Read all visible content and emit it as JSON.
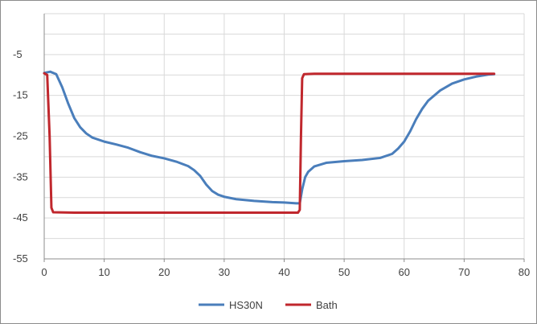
{
  "chart_data": {
    "type": "line",
    "title": "",
    "xlabel": "",
    "ylabel": "",
    "xlim": [
      0,
      80
    ],
    "ylim": [
      -55,
      5
    ],
    "x_ticks": [
      0,
      10,
      20,
      30,
      40,
      50,
      60,
      70,
      80
    ],
    "y_ticks": [
      -5,
      -15,
      -25,
      -35,
      -45,
      -55
    ],
    "grid": "horizontal",
    "legend_position": "bottom",
    "series": [
      {
        "name": "HS30N",
        "color": "#4a7ebb",
        "points": [
          [
            0,
            -9.5
          ],
          [
            1,
            -9.2
          ],
          [
            2,
            -9.8
          ],
          [
            3,
            -13
          ],
          [
            4,
            -17
          ],
          [
            5,
            -20.5
          ],
          [
            6,
            -22.8
          ],
          [
            7,
            -24.3
          ],
          [
            8,
            -25.3
          ],
          [
            10,
            -26.3
          ],
          [
            12,
            -27
          ],
          [
            14,
            -27.8
          ],
          [
            16,
            -28.9
          ],
          [
            18,
            -29.8
          ],
          [
            20,
            -30.4
          ],
          [
            22,
            -31.2
          ],
          [
            24,
            -32.3
          ],
          [
            25,
            -33.3
          ],
          [
            26,
            -34.7
          ],
          [
            27,
            -36.8
          ],
          [
            28,
            -38.4
          ],
          [
            29,
            -39.3
          ],
          [
            30,
            -39.8
          ],
          [
            32,
            -40.4
          ],
          [
            35,
            -40.8
          ],
          [
            38,
            -41.1
          ],
          [
            40,
            -41.2
          ],
          [
            42,
            -41.4
          ],
          [
            42.6,
            -41.4
          ],
          [
            43,
            -38
          ],
          [
            43.5,
            -35
          ],
          [
            44,
            -33.7
          ],
          [
            45,
            -32.4
          ],
          [
            47,
            -31.5
          ],
          [
            50,
            -31.1
          ],
          [
            53,
            -30.8
          ],
          [
            56,
            -30.3
          ],
          [
            58,
            -29.3
          ],
          [
            59,
            -28
          ],
          [
            60,
            -26.3
          ],
          [
            61,
            -23.8
          ],
          [
            62,
            -20.8
          ],
          [
            63,
            -18.3
          ],
          [
            64,
            -16.3
          ],
          [
            66,
            -13.8
          ],
          [
            68,
            -12.1
          ],
          [
            70,
            -11.1
          ],
          [
            72,
            -10.4
          ],
          [
            74,
            -9.9
          ],
          [
            75,
            -9.8
          ]
        ]
      },
      {
        "name": "Bath",
        "color": "#c0272d",
        "points": [
          [
            0,
            -9.6
          ],
          [
            0.5,
            -10
          ],
          [
            0.9,
            -25
          ],
          [
            1.2,
            -42.5
          ],
          [
            1.5,
            -43.6
          ],
          [
            5,
            -43.7
          ],
          [
            42.3,
            -43.7
          ],
          [
            42.6,
            -43
          ],
          [
            42.8,
            -25
          ],
          [
            43,
            -10.8
          ],
          [
            43.3,
            -9.8
          ],
          [
            45,
            -9.7
          ],
          [
            75,
            -9.7
          ]
        ]
      }
    ]
  }
}
